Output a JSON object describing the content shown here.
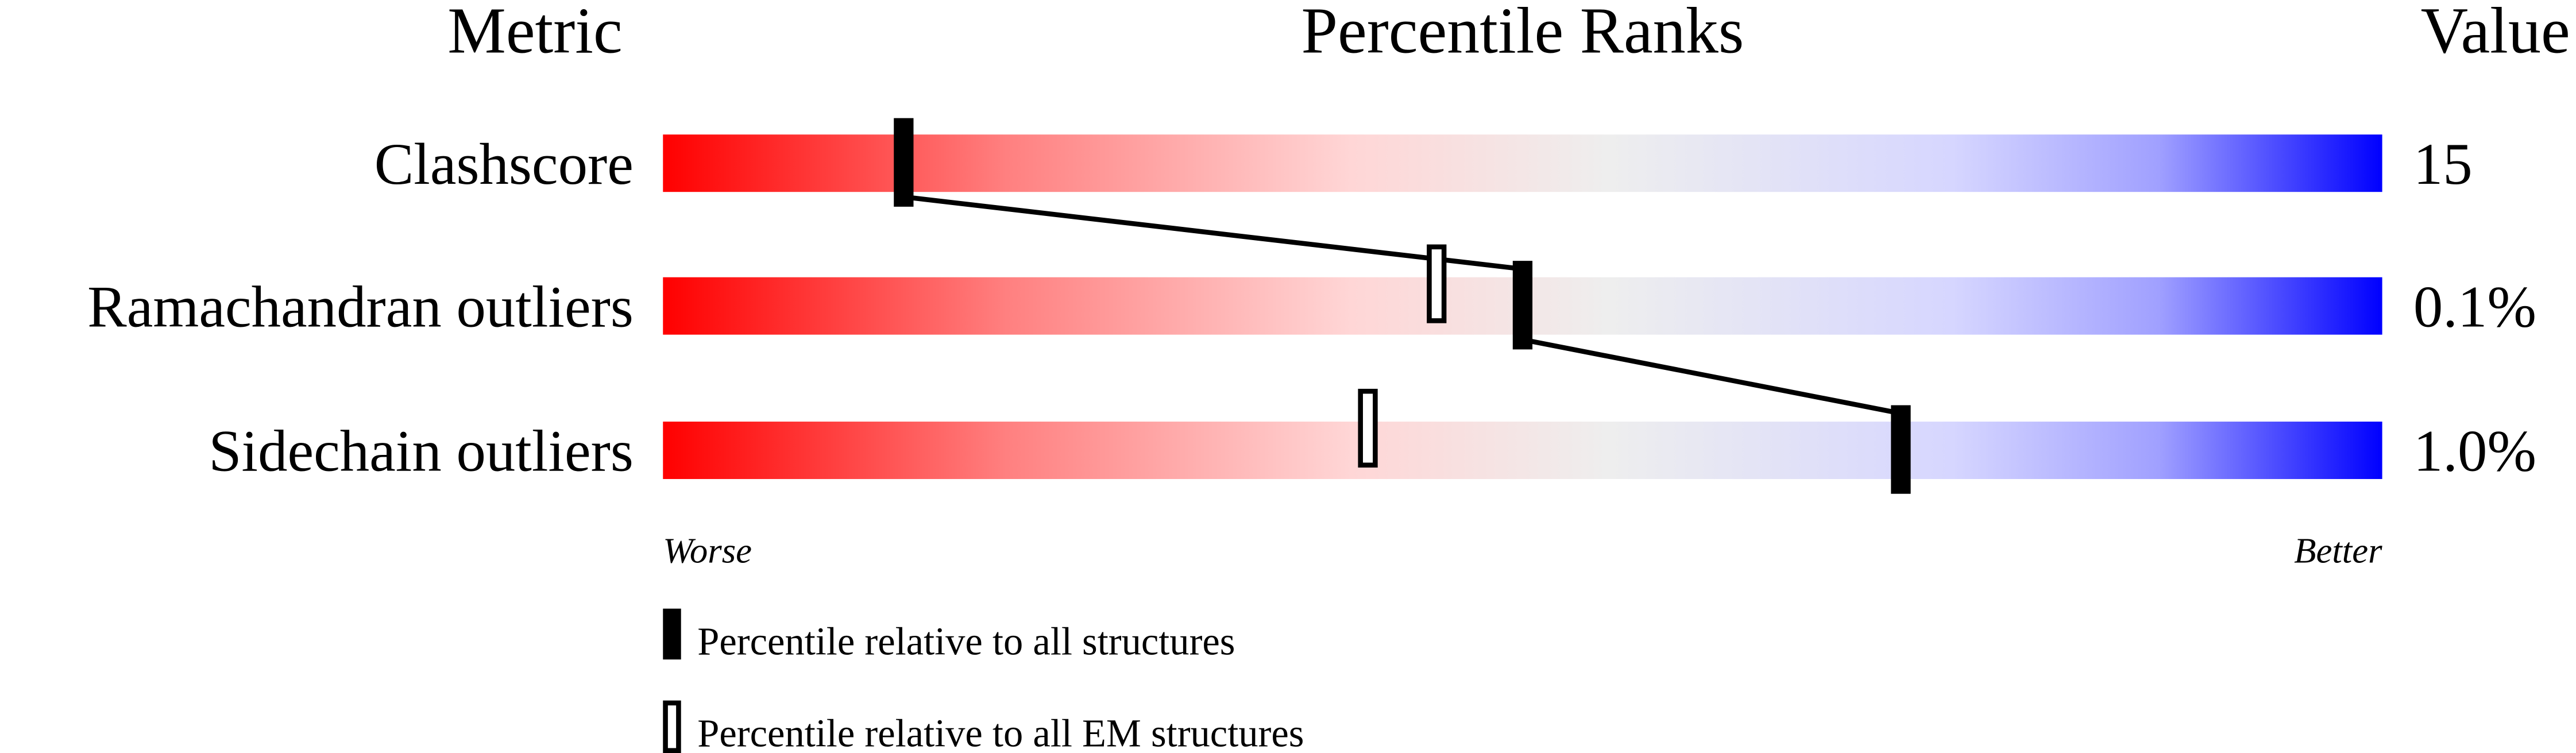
{
  "chart_data": {
    "type": "percentile-slider",
    "headers": {
      "metric": "Metric",
      "ranks": "Percentile Ranks",
      "value": "Value"
    },
    "axis": {
      "worse": "Worse",
      "better": "Better",
      "range": [
        0,
        100
      ]
    },
    "metrics": [
      {
        "name": "Clashscore",
        "value": "15",
        "percentile_all": 14,
        "percentile_em": null
      },
      {
        "name": "Ramachandran outliers",
        "value": "0.1%",
        "percentile_all": 50,
        "percentile_em": 45
      },
      {
        "name": "Sidechain outliers",
        "value": "1.0%",
        "percentile_all": 72,
        "percentile_em": 41
      }
    ],
    "legend": {
      "all": "Percentile relative to all structures",
      "em": "Percentile relative to all EM structures"
    },
    "colors": {
      "worse": "#ff0000",
      "middle": "#eeeeee",
      "better": "#0000ff",
      "marker": "#000000"
    }
  }
}
